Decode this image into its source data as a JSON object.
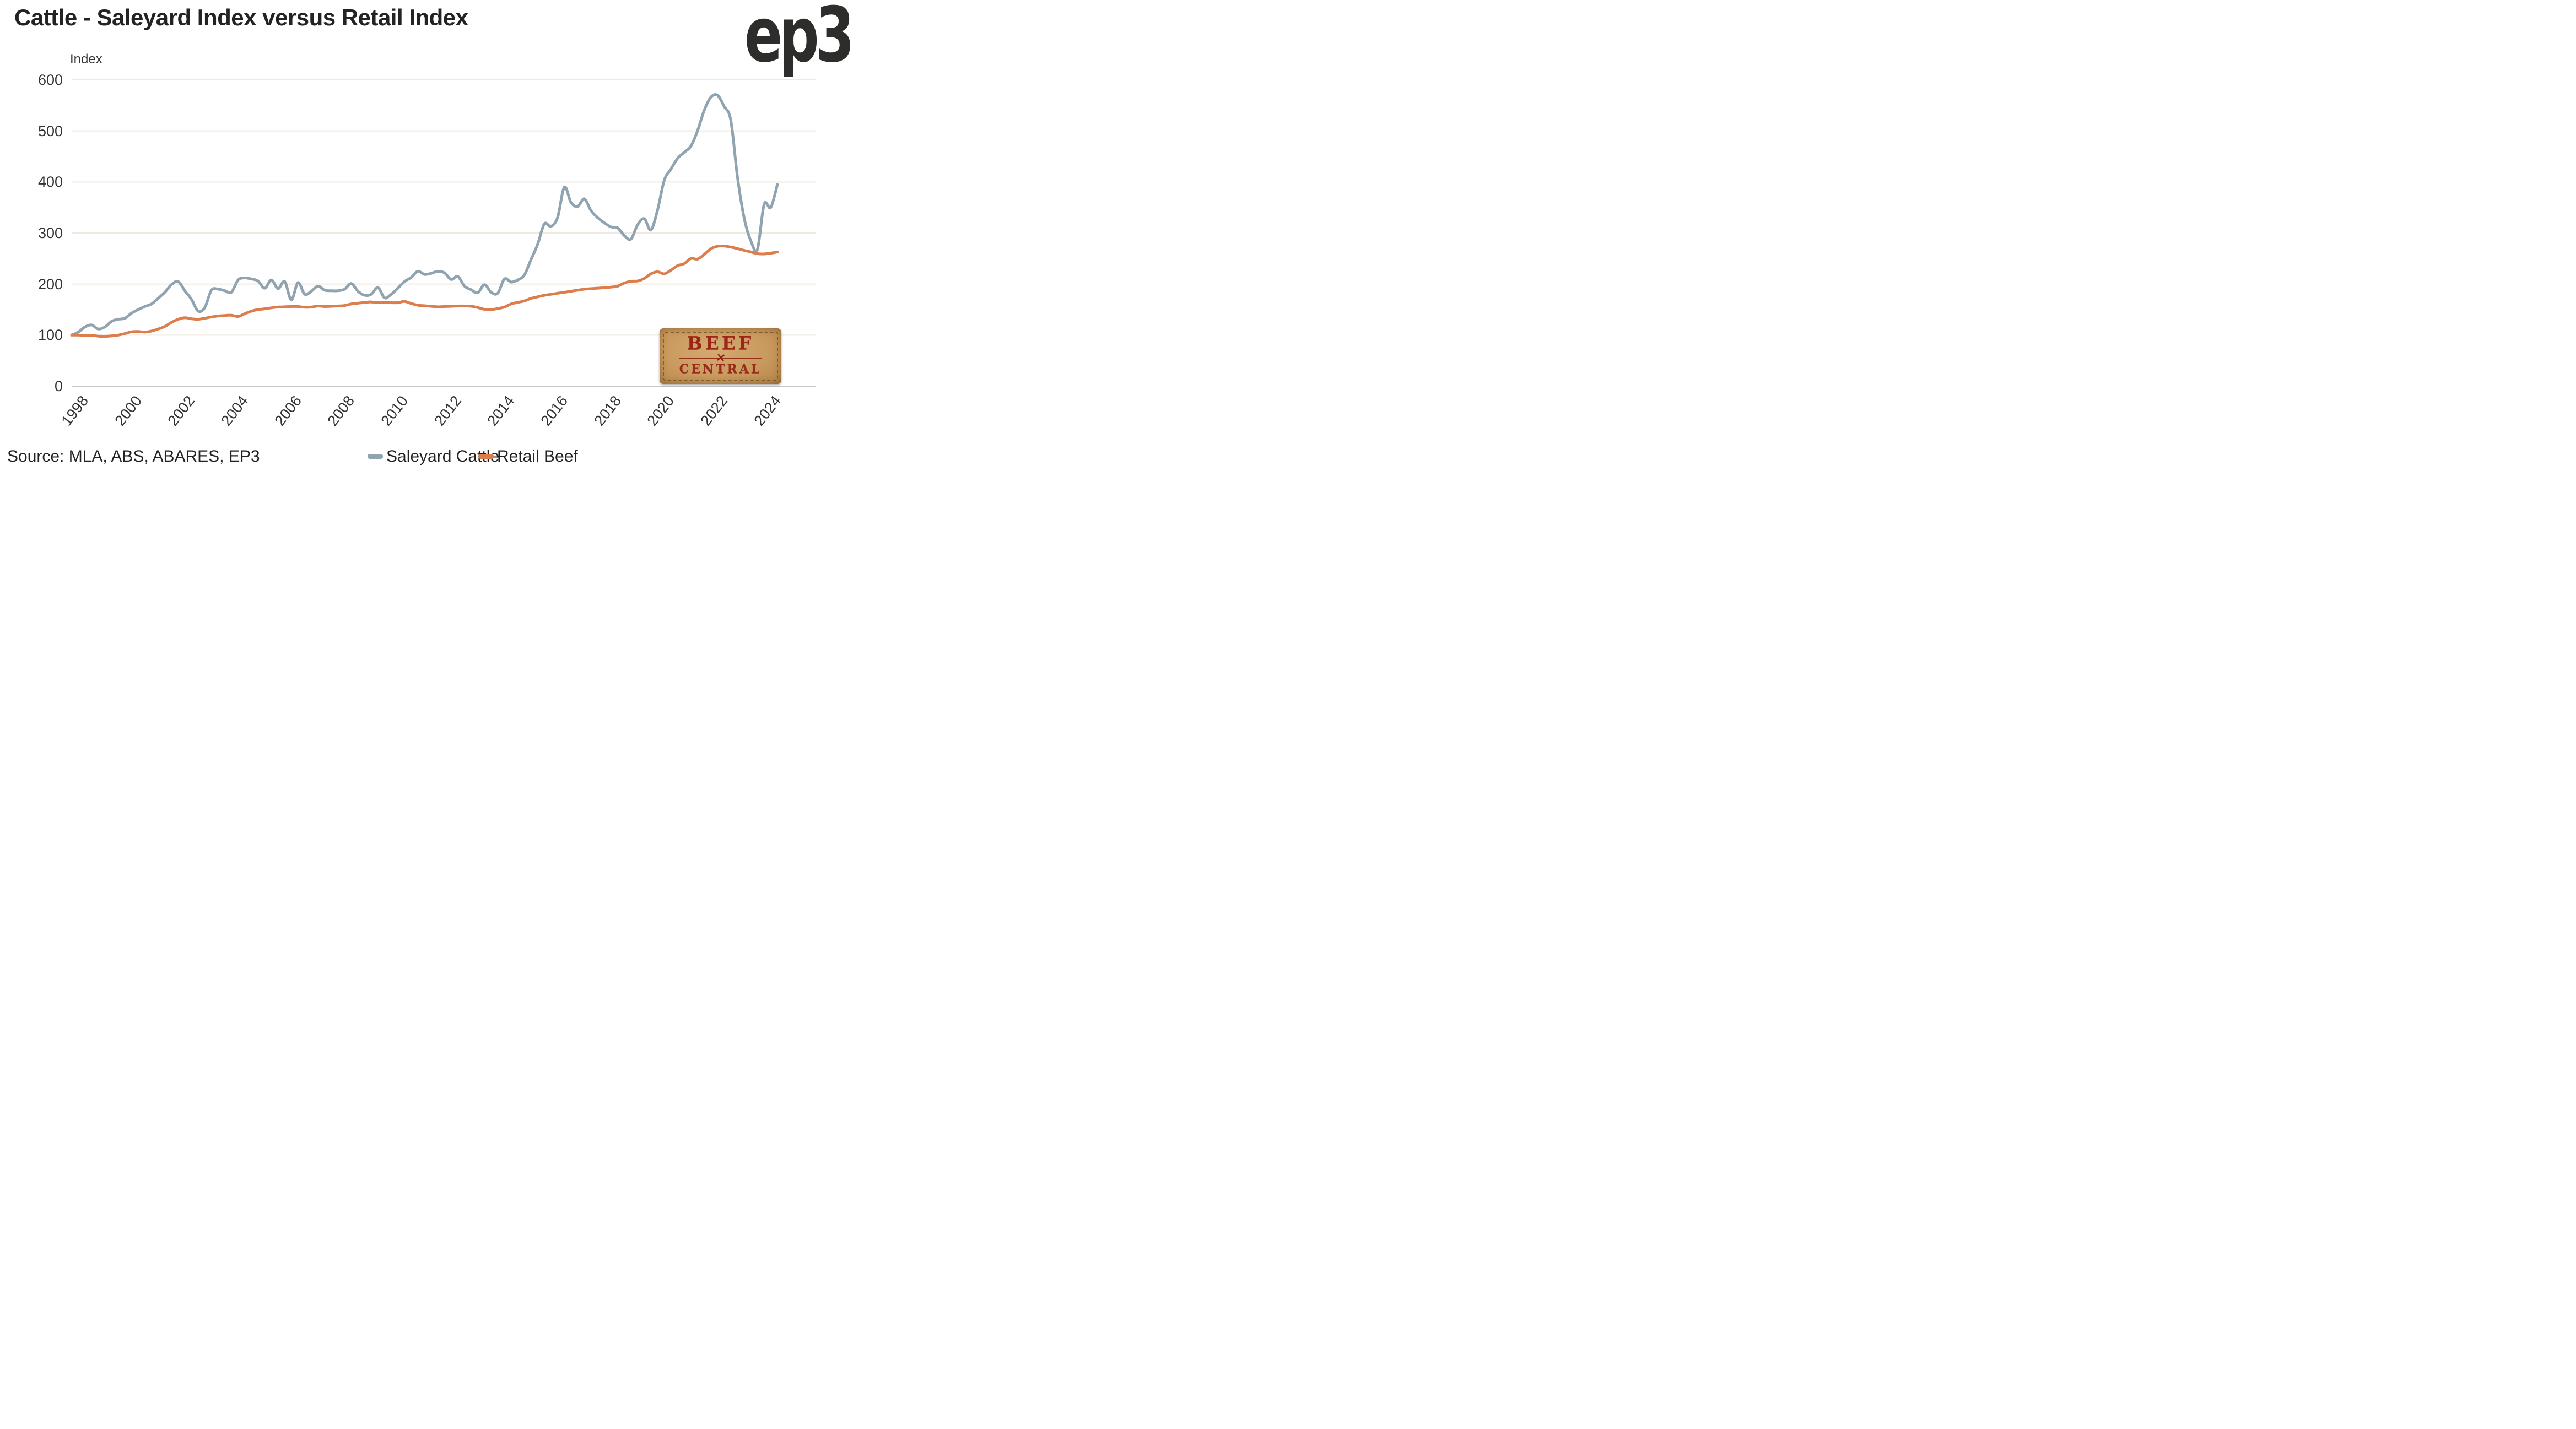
{
  "title": "Cattle - Saleyard Index versus Retail Index",
  "y_axis_label": "Index",
  "source_text": "Source: MLA, ABS, ABARES, EP3",
  "logo_text": "ep3",
  "badge": {
    "line1": "BEEF",
    "line2": "CENTRAL"
  },
  "legend": [
    {
      "label": "Saleyard Cattle",
      "color": "#8fa3b0"
    },
    {
      "label": "Retail Beef",
      "color": "#dc7d4c"
    }
  ],
  "colors": {
    "saleyard_line": "#8fa3b0",
    "retail_line": "#dc7d4c",
    "gridline": "#edebdf",
    "axis_zero_line": "#c6c6c6",
    "text_dark": "#232323",
    "badge_leather": "#c99a5e",
    "badge_text": "#9c2517"
  },
  "chart_data": {
    "type": "line",
    "title": "Cattle - Saleyard Index versus Retail Index",
    "xlabel": "",
    "ylabel": "Index",
    "ylim": [
      0,
      600
    ],
    "y_ticks": [
      0,
      100,
      200,
      300,
      400,
      500,
      600
    ],
    "x_ticks": [
      1998,
      2000,
      2002,
      2004,
      2006,
      2008,
      2010,
      2012,
      2014,
      2016,
      2018,
      2020,
      2022,
      2024
    ],
    "x_start": 1998.0,
    "x_step": 0.25,
    "x_end": 2024.5,
    "grid": "horizontal",
    "legend_position": "bottom",
    "series": [
      {
        "name": "Saleyard Cattle",
        "values": [
          100,
          106,
          116,
          120,
          112,
          116,
          127,
          131,
          133,
          143,
          150,
          156,
          161,
          172,
          184,
          199,
          205,
          187,
          170,
          147,
          154,
          188,
          190,
          187,
          184,
          208,
          212,
          210,
          206,
          192,
          208,
          191,
          205,
          169,
          203,
          180,
          186,
          196,
          188,
          187,
          187,
          190,
          201,
          186,
          178,
          180,
          193,
          173,
          180,
          192,
          205,
          213,
          225,
          219,
          221,
          225,
          222,
          209,
          215,
          196,
          189,
          183,
          199,
          184,
          182,
          210,
          204,
          208,
          218,
          248,
          278,
          318,
          313,
          331,
          390,
          360,
          352,
          367,
          344,
          330,
          320,
          312,
          310,
          295,
          288,
          316,
          328,
          306,
          345,
          403,
          425,
          446,
          458,
          470,
          500,
          540,
          566,
          570,
          548,
          521,
          410,
          330,
          285,
          268,
          356,
          350,
          395
        ]
      },
      {
        "name": "Retail Beef",
        "values": [
          100,
          100,
          99,
          99.5,
          98,
          97.5,
          98.5,
          100,
          103,
          106.5,
          107,
          106,
          108,
          112,
          117,
          125,
          131,
          134,
          132,
          131,
          133,
          135.5,
          137.5,
          138.5,
          139,
          136.5,
          142,
          147,
          150,
          151.5,
          153.5,
          155,
          155.5,
          156,
          156,
          154.5,
          155,
          157,
          156,
          156.5,
          157,
          158,
          161,
          162.5,
          164,
          165,
          163.5,
          164,
          163.5,
          163.5,
          166,
          162,
          158.5,
          157.5,
          156.5,
          155.5,
          156,
          156.5,
          157,
          157,
          156.5,
          154,
          150.5,
          150,
          152,
          155,
          161,
          164,
          167,
          172,
          175,
          178,
          180,
          182,
          184,
          186,
          188,
          190,
          191,
          192,
          193,
          194,
          196,
          202,
          205.5,
          206,
          211,
          220,
          224,
          220,
          227,
          236,
          240,
          250,
          249,
          258,
          269,
          274,
          274.5,
          272.5,
          269.5,
          266,
          263,
          259.5,
          259,
          260.5,
          263
        ]
      }
    ]
  }
}
